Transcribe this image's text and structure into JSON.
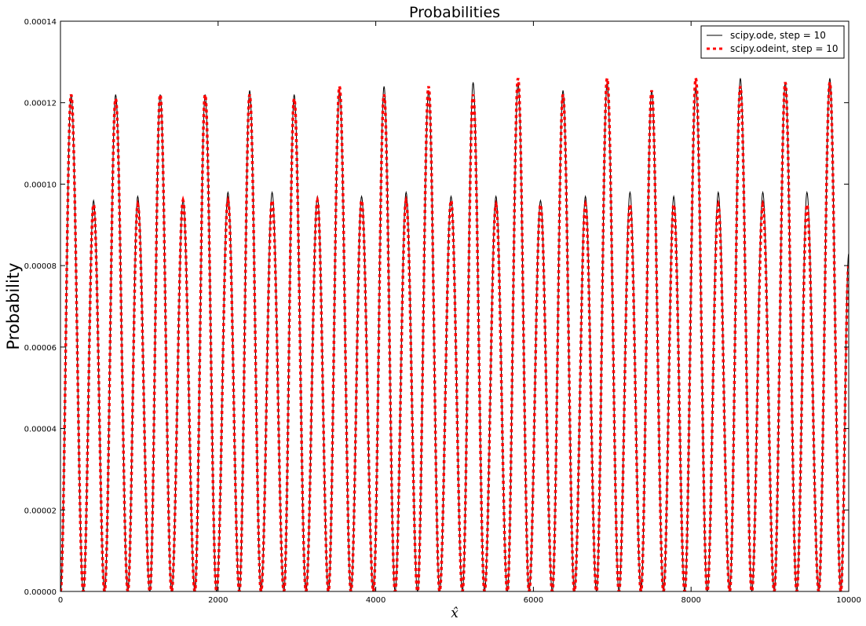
{
  "chart_data": {
    "type": "line",
    "title": "Probabilities",
    "xlabel": "x̂",
    "ylabel": "Probability",
    "xlim": [
      0,
      10000
    ],
    "ylim": [
      0,
      0.00014
    ],
    "x_ticks": [
      0,
      2000,
      4000,
      6000,
      8000,
      10000
    ],
    "x_tick_labels": [
      "0",
      "2000",
      "4000",
      "6000",
      "8000",
      "10000"
    ],
    "y_ticks": [
      0,
      2e-05,
      4e-05,
      6e-05,
      8e-05,
      0.0001,
      0.00012,
      0.00014
    ],
    "y_tick_labels": [
      "0.00000",
      "0.00002",
      "0.00004",
      "0.00006",
      "0.00008",
      "0.00010",
      "0.00012",
      "0.00014"
    ],
    "grid": false,
    "legend_position": "top-right",
    "series": [
      {
        "name": "scipy.ode, step = 10",
        "color": "#000000",
        "style": "solid",
        "x": [
          0,
          135,
          290,
          420,
          560,
          700,
          855,
          980,
          1135,
          1265,
          1410,
          1555,
          1705,
          1835,
          1980,
          2125,
          2270,
          2400,
          2545,
          2685,
          2835,
          2965,
          3115,
          3260,
          3400,
          3540,
          3685,
          3820,
          3970,
          4105,
          4245,
          4385,
          4530,
          4670,
          4810,
          4955,
          5100,
          5235,
          5380,
          5525,
          5670,
          5805,
          5945,
          6090,
          6240,
          6375,
          6520,
          6660,
          6800,
          6935,
          7085,
          7225,
          7365,
          7500,
          7650,
          7780,
          7920,
          8060,
          8205,
          8345,
          8490,
          8625,
          8770,
          8910,
          9055,
          9195,
          9340,
          9470,
          9620,
          9760,
          9900,
          10000
        ],
        "y": [
          0,
          0.000122,
          0,
          9.6e-05,
          0,
          0.000122,
          0,
          9.7e-05,
          0,
          0.000122,
          0,
          9.6e-05,
          0,
          0.000122,
          0,
          9.8e-05,
          0,
          0.000123,
          0,
          9.8e-05,
          0,
          0.000122,
          0,
          9.7e-05,
          0,
          0.000123,
          0,
          9.7e-05,
          0,
          0.000124,
          0,
          9.8e-05,
          0,
          0.000123,
          0,
          9.7e-05,
          0,
          0.000125,
          0,
          9.7e-05,
          0,
          0.000125,
          0,
          9.6e-05,
          0,
          0.000123,
          0,
          9.7e-05,
          0,
          0.000125,
          0,
          9.8e-05,
          0,
          0.000123,
          0,
          9.7e-05,
          0,
          0.000124,
          0,
          9.8e-05,
          0,
          0.000126,
          0,
          9.8e-05,
          0,
          0.000125,
          0,
          9.8e-05,
          0,
          0.000126,
          0,
          8.3e-05
        ]
      },
      {
        "name": "scipy.odeint, step = 10",
        "color": "#ff0000",
        "style": "dashed",
        "x": [
          0,
          135,
          290,
          420,
          560,
          700,
          855,
          980,
          1135,
          1265,
          1410,
          1555,
          1705,
          1835,
          1980,
          2125,
          2270,
          2400,
          2545,
          2685,
          2835,
          2965,
          3115,
          3260,
          3400,
          3540,
          3685,
          3820,
          3970,
          4105,
          4245,
          4385,
          4530,
          4670,
          4810,
          4955,
          5100,
          5235,
          5380,
          5525,
          5670,
          5805,
          5945,
          6090,
          6240,
          6375,
          6520,
          6660,
          6800,
          6935,
          7085,
          7225,
          7365,
          7500,
          7650,
          7780,
          7920,
          8060,
          8205,
          8345,
          8490,
          8625,
          8770,
          8910,
          9055,
          9195,
          9340,
          9470,
          9620,
          9760,
          9900,
          10000
        ],
        "y": [
          0,
          0.000122,
          0,
          9.5e-05,
          0,
          0.000121,
          0,
          9.5e-05,
          0,
          0.000122,
          0,
          9.6e-05,
          0,
          0.000122,
          0,
          9.6e-05,
          0,
          0.000122,
          0,
          9.6e-05,
          0,
          0.000121,
          0,
          9.6e-05,
          0,
          0.000124,
          0,
          9.6e-05,
          0,
          0.000122,
          0,
          9.6e-05,
          0,
          0.000124,
          0,
          9.6e-05,
          0,
          0.000122,
          0,
          9.5e-05,
          0,
          0.000126,
          0,
          9.5e-05,
          0,
          0.000122,
          0,
          9.5e-05,
          0,
          0.000126,
          0,
          9.5e-05,
          0,
          0.000123,
          0,
          9.5e-05,
          0,
          0.000126,
          0,
          9.5e-05,
          0,
          0.000124,
          0,
          9.5e-05,
          0,
          0.000125,
          0,
          9.5e-05,
          0,
          0.000125,
          0,
          8e-05
        ]
      }
    ]
  }
}
